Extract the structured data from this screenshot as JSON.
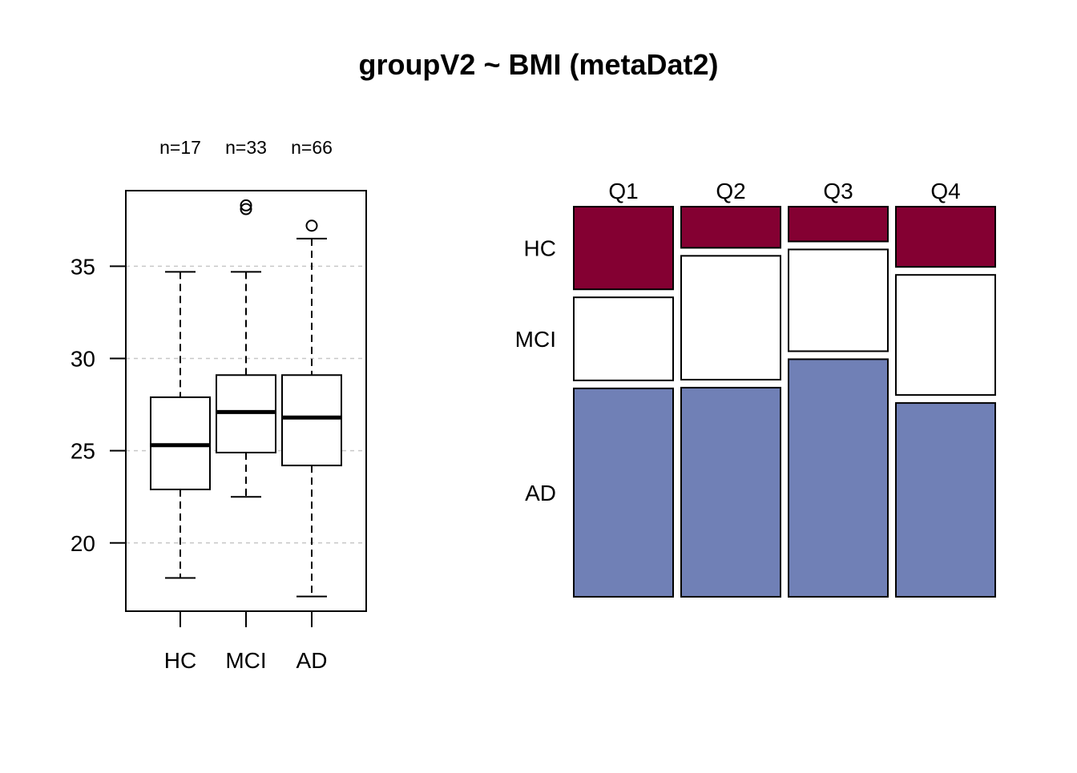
{
  "title": "groupV2 ~ BMI (metaDat2)",
  "chart_data": [
    {
      "type": "boxplot",
      "categories": [
        "HC",
        "MCI",
        "AD"
      ],
      "n_labels": [
        "n=17",
        "n=33",
        "n=66"
      ],
      "boxes": [
        {
          "name": "HC",
          "min": 18.1,
          "q1": 22.9,
          "median": 25.3,
          "q3": 27.9,
          "max": 34.7,
          "outliers": []
        },
        {
          "name": "MCI",
          "min": 22.5,
          "q1": 24.9,
          "median": 27.1,
          "q3": 29.1,
          "max": 34.7,
          "outliers": [
            38.1,
            38.3
          ]
        },
        {
          "name": "AD",
          "min": 17.1,
          "q1": 24.2,
          "median": 26.8,
          "q3": 29.1,
          "max": 36.5,
          "outliers": [
            37.2
          ]
        }
      ],
      "yticks": [
        20,
        25,
        30,
        35
      ],
      "ylim": [
        16.3,
        39.1
      ],
      "grid": true
    },
    {
      "type": "mosaic",
      "columns": [
        "Q1",
        "Q2",
        "Q3",
        "Q4"
      ],
      "rows": [
        "HC",
        "MCI",
        "AD"
      ],
      "row_colors": [
        "#840032",
        "#ffffff",
        "#7080b6"
      ],
      "proportions": [
        [
          0.221,
          0.222,
          0.557
        ],
        [
          0.11,
          0.331,
          0.559
        ],
        [
          0.093,
          0.272,
          0.635
        ],
        [
          0.161,
          0.321,
          0.518
        ]
      ]
    }
  ]
}
